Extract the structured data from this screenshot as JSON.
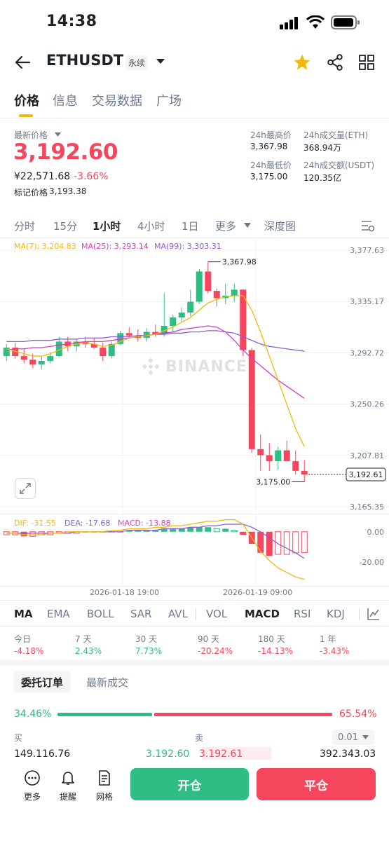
{
  "status_bar": {
    "time": "14:38"
  },
  "header": {
    "symbol": "ETHUSDT",
    "contract_type": "永续"
  },
  "tabs": [
    "价格",
    "信息",
    "交易数据",
    "广场"
  ],
  "price": {
    "label": "最新价格",
    "last": "3,192.60",
    "cny": "¥22,571.68",
    "change": "-3.66%",
    "mark_label": "标记价格",
    "mark": "3,193.38"
  },
  "stats": {
    "high_label": "24h最高价",
    "high": "3,367.98",
    "vol_eth_label": "24h成交量(ETH)",
    "vol_eth": "368.94万",
    "low_label": "24h最低价",
    "low": "3,175.00",
    "vol_usdt_label": "24h成交额(USDT)",
    "vol_usdt": "120.35亿"
  },
  "intervals": [
    "分时",
    "15分",
    "1小时",
    "4小时",
    "1日",
    "更多",
    "深度图"
  ],
  "ma_legend": {
    "ma7": "MA(7): 3,204.83",
    "ma25": "MA(25): 3,293.14",
    "ma99": "MA(99): 3,303.31"
  },
  "colors": {
    "up": "#2ebd85",
    "down": "#f6465d",
    "accent": "#f0b90b",
    "ma7": "#f0b90b",
    "ma25": "#d23fbf",
    "ma99": "#8c5dd6"
  },
  "watermark": "BINANCE",
  "chart_data": {
    "type": "candlestick",
    "price_ticks": [
      "3,377.63",
      "3,335.17",
      "3,292.72",
      "3,250.26",
      "3,207.81",
      "3,165.35"
    ],
    "ylim": [
      3165.35,
      3377.63
    ],
    "x_labels": [
      "2026-01-18 19:00",
      "2026-01-19 09:00"
    ],
    "high_annotation": "3,367.98",
    "low_annotation": "3,175.00",
    "current_price_tag": "3,192.61",
    "candles": [
      [
        3290,
        3300,
        3286,
        3297
      ],
      [
        3297,
        3301,
        3288,
        3290
      ],
      [
        3290,
        3296,
        3284,
        3287
      ],
      [
        3287,
        3292,
        3280,
        3283
      ],
      [
        3283,
        3290,
        3279,
        3286
      ],
      [
        3286,
        3293,
        3284,
        3290
      ],
      [
        3290,
        3306,
        3289,
        3302
      ],
      [
        3302,
        3306,
        3294,
        3298
      ],
      [
        3298,
        3304,
        3294,
        3302
      ],
      [
        3302,
        3306,
        3297,
        3300
      ],
      [
        3300,
        3305,
        3296,
        3297
      ],
      [
        3297,
        3301,
        3286,
        3290
      ],
      [
        3290,
        3302,
        3288,
        3300
      ],
      [
        3300,
        3311,
        3299,
        3309
      ],
      [
        3309,
        3314,
        3305,
        3307
      ],
      [
        3307,
        3312,
        3302,
        3305
      ],
      [
        3305,
        3313,
        3302,
        3310
      ],
      [
        3310,
        3316,
        3306,
        3308
      ],
      [
        3308,
        3342,
        3306,
        3315
      ],
      [
        3315,
        3324,
        3310,
        3322
      ],
      [
        3322,
        3330,
        3318,
        3326
      ],
      [
        3326,
        3345,
        3323,
        3335
      ],
      [
        3335,
        3362,
        3333,
        3360
      ],
      [
        3360,
        3368,
        3342,
        3344
      ],
      [
        3344,
        3346,
        3331,
        3338
      ],
      [
        3338,
        3350,
        3333,
        3340
      ],
      [
        3340,
        3350,
        3335,
        3345
      ],
      [
        3345,
        3345,
        3290,
        3295
      ],
      [
        3295,
        3297,
        3210,
        3213
      ],
      [
        3213,
        3225,
        3195,
        3208
      ],
      [
        3208,
        3218,
        3195,
        3203
      ],
      [
        3203,
        3215,
        3196,
        3212
      ],
      [
        3212,
        3220,
        3204,
        3203
      ],
      [
        3203,
        3212,
        3192,
        3195
      ],
      [
        3195,
        3204,
        3186,
        3192
      ]
    ],
    "ma7": [
      3296,
      3294,
      3292,
      3290,
      3290,
      3292,
      3295,
      3298,
      3300,
      3301,
      3300,
      3298,
      3299,
      3302,
      3305,
      3306,
      3307,
      3308,
      3311,
      3314,
      3318,
      3322,
      3328,
      3334,
      3337,
      3339,
      3340,
      3340,
      3328,
      3310,
      3290,
      3270,
      3250,
      3230,
      3215
    ],
    "ma25": [
      3295,
      3296,
      3296,
      3297,
      3297,
      3298,
      3299,
      3300,
      3301,
      3302,
      3302,
      3302,
      3303,
      3304,
      3305,
      3306,
      3307,
      3308,
      3309,
      3310,
      3312,
      3313,
      3314,
      3315,
      3314,
      3310,
      3303,
      3295,
      3288,
      3282,
      3276,
      3270,
      3265,
      3260,
      3255
    ],
    "ma99": [
      3302,
      3302,
      3302,
      3303,
      3303,
      3303,
      3304,
      3304,
      3304,
      3305,
      3305,
      3305,
      3306,
      3306,
      3306,
      3307,
      3307,
      3308,
      3308,
      3309,
      3309,
      3310,
      3310,
      3311,
      3311,
      3310,
      3309,
      3306,
      3303,
      3300,
      3298,
      3297,
      3296,
      3295,
      3294
    ],
    "macd_legend": {
      "dif": "DIF: -31.55",
      "dea": "DEA: -17.68",
      "macd": "MACD: -13.88"
    },
    "macd_ticks": [
      "0.00",
      "-20.00"
    ],
    "macd_ylim": [
      -35,
      5
    ],
    "macd_hist": [
      -2,
      -2,
      -3,
      -3,
      -2,
      -2,
      -1,
      -1,
      -1,
      0,
      0,
      0,
      0,
      0,
      1,
      1,
      1,
      1,
      2,
      2,
      2,
      3,
      3,
      3,
      2,
      2,
      1,
      -2,
      -8,
      -14,
      -16,
      -15,
      -15,
      -14,
      -13.88
    ],
    "dif": [
      -1,
      -1,
      -2,
      -2,
      -2,
      -1,
      -1,
      0,
      0,
      0,
      0,
      0,
      1,
      1,
      2,
      2,
      2,
      3,
      3,
      4,
      4,
      5,
      6,
      7,
      7,
      8,
      8,
      5,
      -4,
      -13,
      -19,
      -24,
      -27,
      -30,
      -31.55
    ],
    "dea": [
      -1,
      -1,
      -1,
      -1,
      -1,
      -1,
      -1,
      -1,
      0,
      0,
      0,
      0,
      0,
      0,
      1,
      1,
      1,
      1,
      2,
      2,
      2,
      3,
      3,
      4,
      4,
      5,
      5,
      5,
      3,
      0,
      -4,
      -8,
      -11,
      -14,
      -17.68
    ]
  },
  "indicators": [
    "MA",
    "EMA",
    "BOLL",
    "SAR",
    "AVL",
    "VOL",
    "MACD",
    "RSI",
    "KDJ"
  ],
  "performance": [
    {
      "label": "今日",
      "value": "-4.18%",
      "dir": "down"
    },
    {
      "label": "7 天",
      "value": "2.43%",
      "dir": "up"
    },
    {
      "label": "30 天",
      "value": "7.73%",
      "dir": "up"
    },
    {
      "label": "90 天",
      "value": "-20.24%",
      "dir": "down"
    },
    {
      "label": "180 天",
      "value": "-14.13%",
      "dir": "down"
    },
    {
      "label": "1 年",
      "value": "-3.43%",
      "dir": "down"
    }
  ],
  "orders": {
    "tab_book": "委托订单",
    "tab_trades": "最新成交",
    "buy_ratio": 34.46,
    "buy_pct": "34.46%",
    "sell_pct": "65.54%",
    "buy_label": "买",
    "sell_label": "卖",
    "precision": "0.01",
    "bid_qty": "149.116.76",
    "bid_price": "3.192.60",
    "ask_price": "3.192.61",
    "ask_qty": "392.343.03"
  },
  "bottom_bar": {
    "more": "更多",
    "alert": "提醒",
    "grid": "网格",
    "open": "开仓",
    "close": "平仓"
  }
}
